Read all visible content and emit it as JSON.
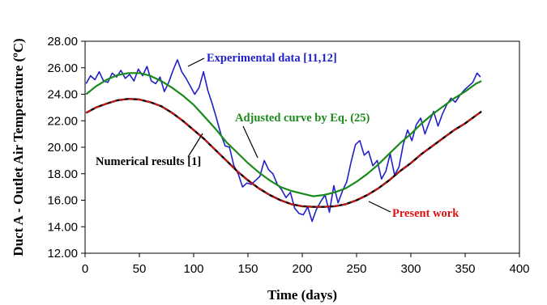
{
  "chart_data": {
    "type": "line",
    "xlabel": "Time (days)",
    "ylabel": "Duct A - Outlet Air Temperature (ºC)",
    "xlim": [
      0,
      400
    ],
    "ylim": [
      12,
      28
    ],
    "xticks": [
      "0",
      "50",
      "100",
      "150",
      "200",
      "250",
      "300",
      "350",
      "400"
    ],
    "yticks": [
      "12.00",
      "14.00",
      "16.00",
      "18.00",
      "20.00",
      "22.00",
      "24.00",
      "26.00",
      "28.00"
    ],
    "grid": false,
    "legend": "none",
    "annotations": [
      {
        "text": "Experimental data [11,12]",
        "color": "#2020c8",
        "series": 0
      },
      {
        "text": "Adjusted curve by Eq. (25)",
        "color": "#1a8a1a",
        "series": 1
      },
      {
        "text": "Numerical results [1]",
        "color": "#000000",
        "series": 2
      },
      {
        "text": "Present work",
        "color": "#e01010",
        "series": 3
      }
    ],
    "series": [
      {
        "color": "#2020c8",
        "x": [
          1,
          5,
          9,
          13,
          17,
          21,
          25,
          29,
          33,
          37,
          41,
          45,
          49,
          53,
          57,
          61,
          65,
          69,
          73,
          77,
          81,
          85,
          89,
          93,
          97,
          101,
          105,
          109,
          113,
          117,
          121,
          125,
          129,
          133,
          137,
          141,
          145,
          149,
          153,
          157,
          161,
          165,
          169,
          173,
          177,
          181,
          185,
          189,
          193,
          197,
          201,
          205,
          209,
          213,
          217,
          221,
          225,
          229,
          233,
          237,
          241,
          245,
          249,
          253,
          257,
          261,
          265,
          269,
          273,
          277,
          281,
          285,
          289,
          293,
          297,
          301,
          305,
          309,
          313,
          317,
          321,
          325,
          329,
          333,
          337,
          341,
          345,
          349,
          353,
          357,
          361,
          364
        ],
        "values": [
          24.8,
          25.4,
          25.1,
          25.7,
          25.0,
          24.9,
          25.6,
          25.3,
          25.8,
          25.2,
          25.5,
          25.0,
          25.9,
          25.4,
          26.1,
          25.0,
          24.8,
          25.3,
          24.2,
          24.9,
          25.8,
          26.6,
          25.7,
          25.2,
          24.6,
          24.0,
          24.5,
          25.7,
          24.3,
          23.3,
          22.2,
          21.0,
          20.1,
          20.0,
          18.6,
          18.0,
          17.0,
          17.3,
          17.2,
          17.5,
          17.8,
          19.0,
          18.3,
          18.0,
          17.2,
          16.8,
          16.2,
          16.6,
          15.4,
          15.0,
          14.9,
          15.5,
          14.4,
          15.3,
          15.9,
          16.4,
          15.1,
          17.1,
          15.8,
          16.7,
          17.4,
          18.9,
          20.2,
          20.5,
          19.4,
          19.7,
          18.6,
          19.0,
          17.6,
          18.2,
          19.5,
          17.9,
          18.5,
          20.2,
          21.3,
          20.5,
          21.7,
          22.2,
          21.0,
          21.9,
          22.7,
          21.6,
          22.5,
          23.2,
          23.7,
          23.4,
          23.9,
          24.3,
          24.6,
          24.9,
          25.6,
          25.3
        ]
      },
      {
        "color": "#1a8a1a",
        "x": [
          1,
          10,
          20,
          30,
          40,
          50,
          60,
          70,
          80,
          90,
          100,
          110,
          120,
          130,
          140,
          150,
          160,
          170,
          180,
          190,
          200,
          210,
          220,
          230,
          240,
          250,
          260,
          270,
          280,
          290,
          300,
          310,
          320,
          330,
          340,
          350,
          360,
          365
        ],
        "values": [
          24.0,
          24.6,
          25.1,
          25.45,
          25.6,
          25.6,
          25.4,
          25.0,
          24.5,
          23.9,
          23.2,
          22.3,
          21.4,
          20.4,
          19.6,
          18.8,
          18.1,
          17.5,
          17.0,
          16.7,
          16.5,
          16.3,
          16.4,
          16.6,
          16.9,
          17.4,
          18.0,
          18.7,
          19.5,
          20.3,
          21.0,
          21.8,
          22.5,
          23.1,
          23.7,
          24.2,
          24.8,
          25.0
        ]
      },
      {
        "color": "#000000",
        "x": [
          1,
          10,
          20,
          30,
          40,
          50,
          60,
          70,
          80,
          90,
          100,
          110,
          120,
          130,
          140,
          150,
          160,
          170,
          180,
          190,
          200,
          210,
          220,
          230,
          240,
          250,
          260,
          270,
          280,
          290,
          300,
          310,
          320,
          330,
          340,
          350,
          360,
          365
        ],
        "values": [
          22.6,
          23.0,
          23.3,
          23.55,
          23.65,
          23.6,
          23.4,
          23.1,
          22.6,
          22.0,
          21.3,
          20.6,
          19.8,
          19.0,
          18.2,
          17.5,
          16.9,
          16.4,
          16.0,
          15.7,
          15.55,
          15.5,
          15.5,
          15.55,
          15.7,
          16.0,
          16.4,
          16.9,
          17.5,
          18.2,
          18.8,
          19.5,
          20.1,
          20.7,
          21.3,
          21.8,
          22.4,
          22.7
        ]
      },
      {
        "color": "#e01010",
        "dashed": true,
        "x": [
          1,
          10,
          20,
          30,
          40,
          50,
          60,
          70,
          80,
          90,
          100,
          110,
          120,
          130,
          140,
          150,
          160,
          170,
          180,
          190,
          200,
          210,
          220,
          230,
          240,
          250,
          260,
          270,
          280,
          290,
          300,
          310,
          320,
          330,
          340,
          350,
          360,
          365
        ],
        "values": [
          22.6,
          23.0,
          23.3,
          23.55,
          23.65,
          23.6,
          23.4,
          23.1,
          22.6,
          22.0,
          21.3,
          20.6,
          19.8,
          19.0,
          18.2,
          17.5,
          16.9,
          16.4,
          16.0,
          15.7,
          15.55,
          15.5,
          15.5,
          15.55,
          15.7,
          16.0,
          16.4,
          16.9,
          17.5,
          18.2,
          18.8,
          19.5,
          20.1,
          20.7,
          21.3,
          21.8,
          22.4,
          22.7
        ]
      }
    ]
  }
}
